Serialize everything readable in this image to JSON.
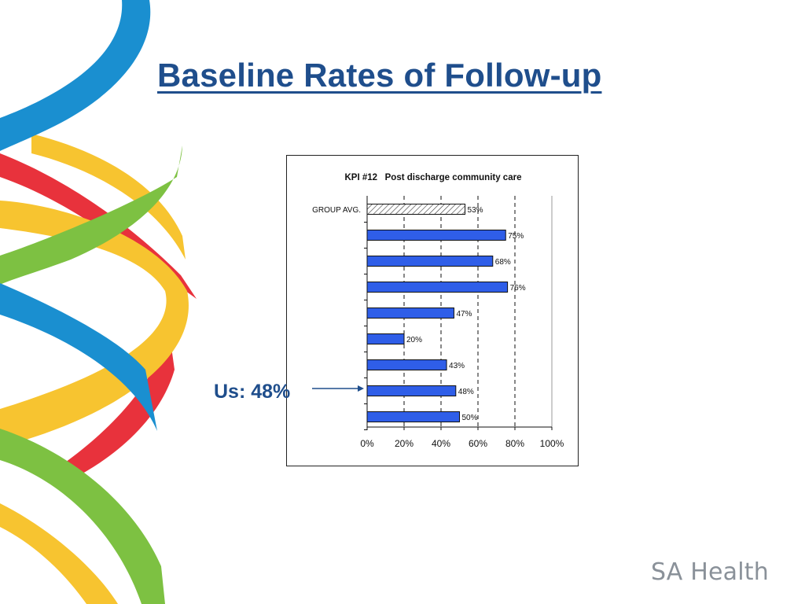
{
  "slide": {
    "title": "Baseline Rates of Follow-up",
    "callout": "Us: 48%",
    "brand": "SA Health"
  },
  "colors": {
    "title": "#1f4e8c",
    "bar": "#2f5ee8",
    "brand": "#8a9199",
    "ribbon_blue": "#1a8fd0",
    "ribbon_red": "#e8323c",
    "ribbon_yellow": "#f7c430",
    "ribbon_green": "#7dc142"
  },
  "chart_data": {
    "type": "bar",
    "orientation": "horizontal",
    "title": "KPI #12   Post discharge community care",
    "categories": [
      "GROUP AVG.",
      "",
      "",
      "",
      "",
      "",
      "",
      "",
      ""
    ],
    "values": [
      53,
      75,
      68,
      76,
      47,
      20,
      43,
      48,
      50
    ],
    "data_labels": [
      "53%",
      "75%",
      "68%",
      "76%",
      "47%",
      "20%",
      "43%",
      "48%",
      "50%"
    ],
    "highlight_index": 0,
    "highlight_style": "hatched",
    "callout_index": 7,
    "xlim": [
      0,
      100
    ],
    "xticks": [
      0,
      20,
      40,
      60,
      80,
      100
    ],
    "xtick_labels": [
      "0%",
      "20%",
      "40%",
      "60%",
      "80%",
      "100%"
    ],
    "grid": "dashed vertical lines at 20%, 40%, 60%, 80%",
    "legend": "none"
  }
}
